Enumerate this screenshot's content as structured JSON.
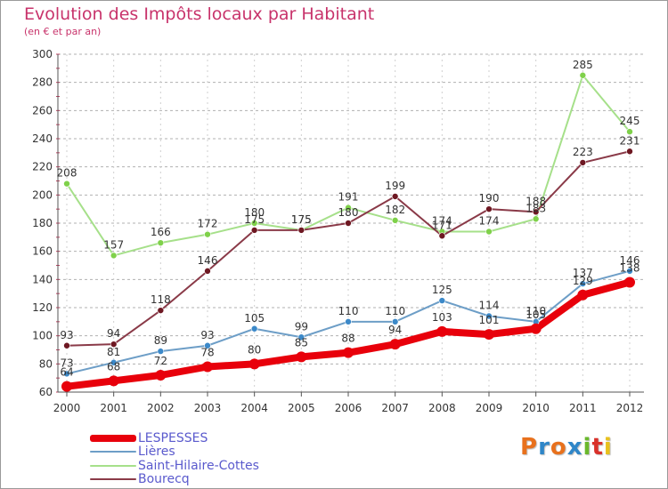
{
  "header": {
    "title": "Evolution des Impôts locaux par Habitant",
    "subtitle": "(en € et par an)"
  },
  "logo": {
    "text": "Proxiti",
    "colors": [
      "#e8711d",
      "#2f86c8",
      "#e8711d",
      "#2f86c8",
      "#6ab82c",
      "#d9312a",
      "#e8c11d"
    ]
  },
  "chart_data": {
    "type": "line",
    "x": [
      "2000",
      "2001",
      "2002",
      "2003",
      "2004",
      "2005",
      "2006",
      "2007",
      "2008",
      "2009",
      "2010",
      "2011",
      "2012"
    ],
    "ylim": [
      60,
      300
    ],
    "yticks": [
      "60",
      "80",
      "100",
      "120",
      "140",
      "160",
      "180",
      "200",
      "220",
      "240",
      "260",
      "280",
      "300"
    ],
    "grid": "horizontal dashed",
    "legend_position": "bottom-left",
    "series": [
      {
        "name": "LESPESSES",
        "color": "#e8000b",
        "marker_color": "#e8000b",
        "values": [
          64,
          68,
          72,
          78,
          80,
          85,
          88,
          94,
          103,
          101,
          105,
          129,
          138
        ],
        "labels": [
          "64",
          "68",
          "72",
          "78",
          "80",
          "85",
          "88",
          "94",
          "103",
          "101",
          "105",
          "129",
          "138"
        ]
      },
      {
        "name": "Lières",
        "color": "#6d9ec7",
        "marker_color": "#3c89c9",
        "values": [
          73,
          81,
          89,
          93,
          105,
          99,
          110,
          110,
          125,
          114,
          110,
          137,
          146
        ],
        "labels": [
          "73",
          "81",
          "89",
          "93",
          "105",
          "99",
          "110",
          "110",
          "125",
          "114",
          "110",
          "137",
          "146"
        ]
      },
      {
        "name": "Saint-Hilaire-Cottes",
        "color": "#a6e08a",
        "marker_color": "#7fd14a",
        "values": [
          208,
          157,
          166,
          172,
          180,
          175,
          191,
          182,
          174,
          174,
          183,
          285,
          245
        ],
        "labels": [
          "208",
          "157",
          "166",
          "172",
          "180",
          "175",
          "191",
          "182",
          "174",
          "174",
          "183",
          "285",
          "245"
        ]
      },
      {
        "name": "Bourecq",
        "color": "#8a3a48",
        "marker_color": "#6e1822",
        "values": [
          93,
          94,
          118,
          146,
          175,
          175,
          180,
          199,
          171,
          190,
          188,
          223,
          231
        ],
        "labels": [
          "93",
          "94",
          "118",
          "146",
          "175",
          "175",
          "180",
          "199",
          "171",
          "190",
          "188",
          "223",
          "231"
        ]
      }
    ]
  }
}
